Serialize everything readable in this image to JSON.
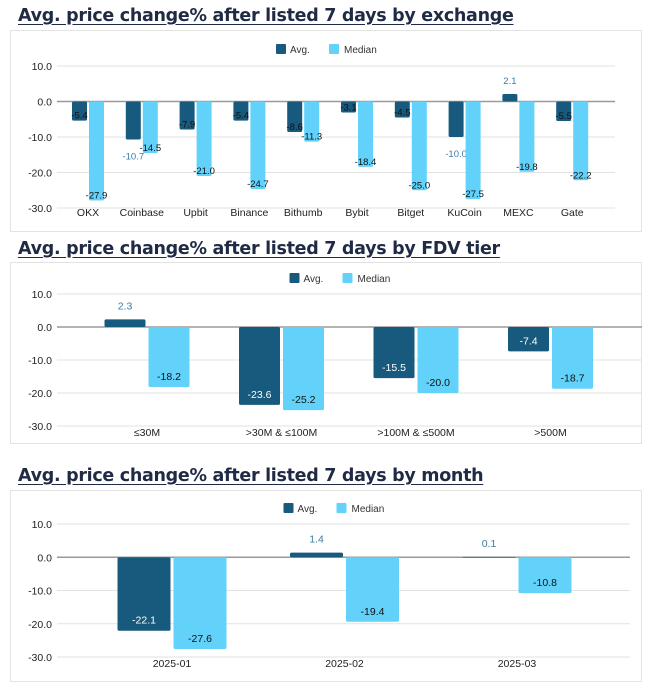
{
  "colors": {
    "avg": "#175a7d",
    "median": "#62d2fb",
    "positive_label": "#3a7ca5"
  },
  "chart_data": [
    {
      "type": "bar",
      "title": "Avg. price change% after listed 7 days by exchange",
      "legend": "top-center",
      "grid": true,
      "ylim": [
        -30,
        10
      ],
      "yticks": [
        "10.0",
        "0.0",
        "-10.0",
        "-20.0",
        "-30.0"
      ],
      "categories": [
        "OKX",
        "Coinbase",
        "Upbit",
        "Binance",
        "Bithumb",
        "Bybit",
        "Bitget",
        "KuCoin",
        "MEXC",
        "Gate"
      ],
      "series": [
        {
          "name": "Avg.",
          "values": [
            -5.4,
            -10.7,
            -7.9,
            -5.4,
            -8.6,
            -3.1,
            -4.5,
            -10.0,
            2.1,
            -5.5
          ]
        },
        {
          "name": "Median",
          "values": [
            -27.9,
            -14.5,
            -21.0,
            -24.7,
            -11.3,
            -18.4,
            -25.0,
            -27.5,
            -19.8,
            -22.2
          ]
        }
      ]
    },
    {
      "type": "bar",
      "title": "Avg. price change% after listed 7 days by FDV tier",
      "legend": "top-center",
      "grid": true,
      "ylim": [
        -30,
        10
      ],
      "yticks": [
        "10.0",
        "0.0",
        "-10.0",
        "-20.0",
        "-30.0"
      ],
      "categories": [
        "≤30M",
        ">30M & ≤100M",
        ">100M & ≤500M",
        ">500M"
      ],
      "series": [
        {
          "name": "Avg.",
          "values": [
            2.3,
            -23.6,
            -15.5,
            -7.4
          ]
        },
        {
          "name": "Median",
          "values": [
            -18.2,
            -25.2,
            -20.0,
            -18.7
          ]
        }
      ]
    },
    {
      "type": "bar",
      "title": "Avg. price change% after listed 7 days by month",
      "legend": "top-center",
      "grid": true,
      "ylim": [
        -30,
        10
      ],
      "yticks": [
        "10.0",
        "0.0",
        "-10.0",
        "-20.0",
        "-30.0"
      ],
      "categories": [
        "2025-01",
        "2025-02",
        "2025-03"
      ],
      "series": [
        {
          "name": "Avg.",
          "values": [
            -22.1,
            1.4,
            0.1
          ]
        },
        {
          "name": "Median",
          "values": [
            -27.6,
            -19.4,
            -10.8
          ]
        }
      ]
    }
  ]
}
